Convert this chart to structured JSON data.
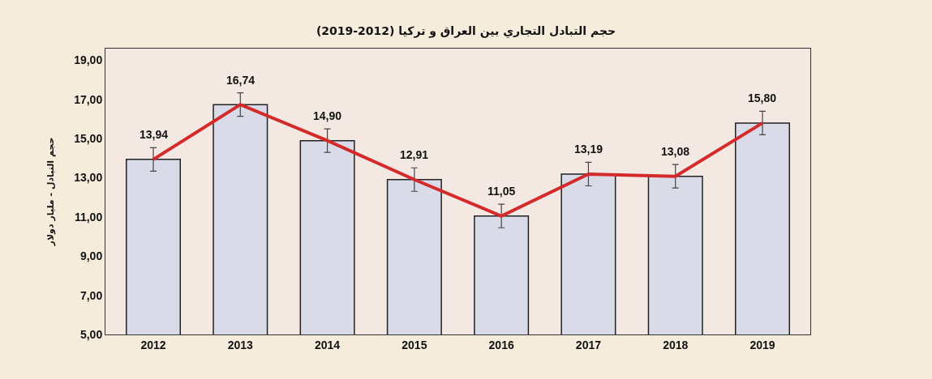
{
  "chart_data": {
    "type": "bar",
    "title": "حجم التبادل التجاري بين العراق و تركيا (2012-2019)",
    "ylabel": "حجم التبادل - مليار دولار",
    "categories": [
      "2012",
      "2013",
      "2014",
      "2015",
      "2016",
      "2017",
      "2018",
      "2019"
    ],
    "series": [
      {
        "color": "#d9dce8",
        "values": [
          13.94,
          16.74,
          14.9,
          12.91,
          11.05,
          13.19,
          13.08,
          15.8
        ],
        "value_labels": [
          "13,94",
          "16,74",
          "14,90",
          "12,91",
          "11,05",
          "13,19",
          "13,08",
          "15,80"
        ]
      },
      {
        "type": "line",
        "color": "#d42a2a",
        "values": [
          13.94,
          16.74,
          14.9,
          12.91,
          11.05,
          13.19,
          13.08,
          15.8
        ],
        "errors": [
          0.6,
          0.6,
          0.6,
          0.6,
          0.6,
          0.6,
          0.6,
          0.6
        ],
        "marker": "none",
        "line_style": "solid"
      }
    ],
    "ylim": [
      5,
      19.6
    ],
    "yticks": [
      {
        "value": 5,
        "label": "5,00"
      },
      {
        "value": 7,
        "label": "7,00"
      },
      {
        "value": 9,
        "label": "9,00"
      },
      {
        "value": 11,
        "label": "11,00"
      },
      {
        "value": 13,
        "label": "13,00"
      },
      {
        "value": 15,
        "label": "15,00"
      },
      {
        "value": 17,
        "label": "17,00"
      },
      {
        "value": 19,
        "label": "19,00"
      }
    ],
    "grid": false,
    "legend": false
  }
}
